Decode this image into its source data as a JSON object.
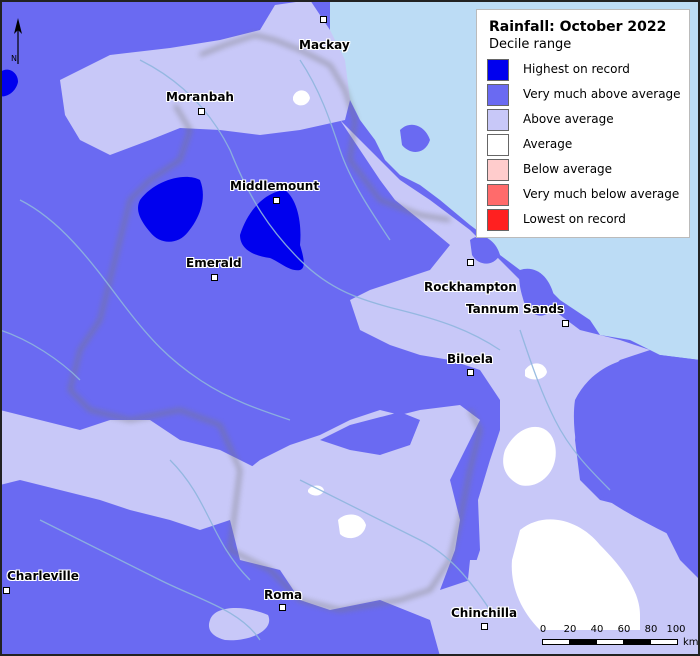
{
  "map": {
    "title": "Rainfall: October 2022",
    "subtitle": "Decile range",
    "colors": {
      "sea": "#bcdcf5",
      "highest": "#0000ee",
      "very_much_above": "#6a6af2",
      "above": "#c8c8f8",
      "average": "#ffffff",
      "below": "#ffcccc",
      "very_much_below": "#ff6b6b",
      "lowest": "#ff2020",
      "river": "#8fb6de",
      "boundary": "#888888"
    },
    "legend": [
      {
        "label": "Highest on record",
        "color": "#0000ee"
      },
      {
        "label": "Very much above average",
        "color": "#6a6af2"
      },
      {
        "label": "Above average",
        "color": "#c8c8f8"
      },
      {
        "label": "Average",
        "color": "#ffffff"
      },
      {
        "label": "Below average",
        "color": "#ffcccc"
      },
      {
        "label": "Very much below average",
        "color": "#ff6b6b"
      },
      {
        "label": "Lowest on record",
        "color": "#ff2020"
      }
    ],
    "towns": [
      "Mackay",
      "Moranbah",
      "Middlemount",
      "Emerald",
      "Rockhampton",
      "Tannum Sands",
      "Biloela",
      "Charleville",
      "Roma",
      "Chinchilla"
    ],
    "north_label": "N",
    "scale": {
      "ticks": [
        "0",
        "20",
        "40",
        "60",
        "80",
        "100"
      ],
      "unit": "km"
    }
  }
}
